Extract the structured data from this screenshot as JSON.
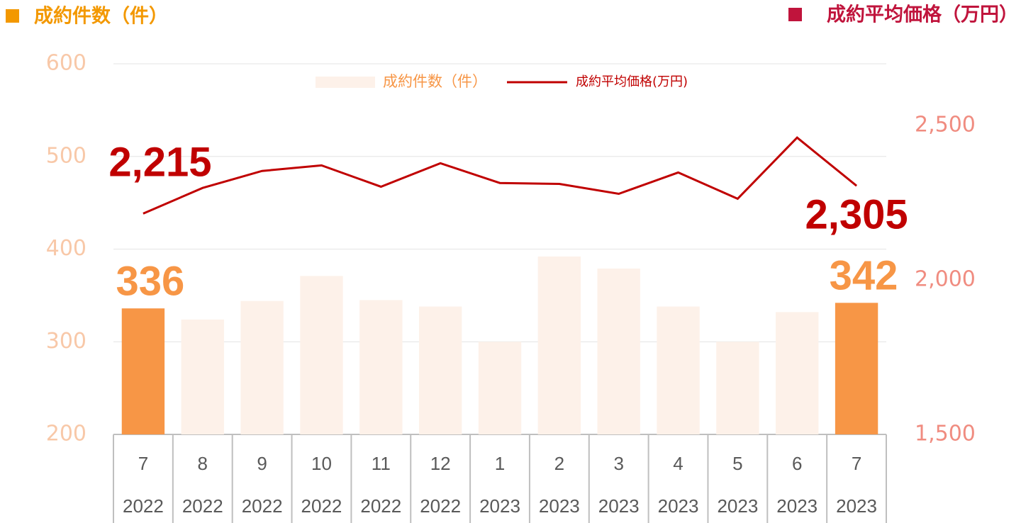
{
  "chart_data": {
    "type": "bar-line",
    "left_axis_title": "成約件数（件）",
    "right_axis_title": "成約平均価格（万円）",
    "left_title_color": "#f39800",
    "right_title_color": "#c0143c",
    "categories": [
      "7",
      "8",
      "9",
      "10",
      "11",
      "12",
      "1",
      "2",
      "3",
      "4",
      "5",
      "6",
      "7"
    ],
    "category_years": [
      "2022",
      "2022",
      "2022",
      "2022",
      "2022",
      "2022",
      "2023",
      "2023",
      "2023",
      "2023",
      "2023",
      "2023",
      "2023"
    ],
    "series": [
      {
        "name": "成約件数（件）",
        "type": "bar",
        "color": "#fdf1e9",
        "highlight_color": "#f79646",
        "highlight": [
          0,
          12
        ],
        "values": [
          336,
          324,
          344,
          371,
          345,
          338,
          300,
          392,
          379,
          338,
          300,
          332,
          342
        ],
        "value_labels": [
          "336",
          null,
          null,
          null,
          null,
          null,
          null,
          null,
          null,
          null,
          null,
          null,
          "342"
        ]
      },
      {
        "name": "成約平均価格(万円)",
        "type": "line",
        "axis": "y2",
        "color": "#c00000",
        "values": [
          2215,
          2298,
          2353,
          2371,
          2302,
          2378,
          2314,
          2311,
          2279,
          2348,
          2263,
          2461,
          2305
        ],
        "value_labels": [
          "2,215",
          null,
          null,
          null,
          null,
          null,
          null,
          null,
          null,
          null,
          null,
          null,
          "2,305"
        ]
      }
    ],
    "ylim": [
      200,
      600
    ],
    "yticks": [
      200,
      300,
      400,
      500,
      600
    ],
    "y2lim": [
      1500,
      2700
    ],
    "y2ticks": [
      {
        "value": 1500,
        "label": "1,500"
      },
      {
        "value": 2000,
        "label": "2,000"
      },
      {
        "value": 2500,
        "label": "2,500"
      }
    ],
    "ytick_color": "#f8c8a8",
    "y2tick_color": "#f08c80",
    "grid": true,
    "legend": "top"
  }
}
